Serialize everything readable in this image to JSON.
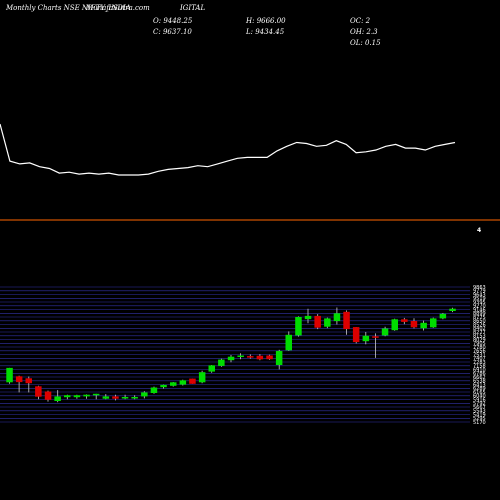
{
  "header": {
    "title": "Monthly Charts NSE NIFTY_INDIA",
    "title_suffix": "IGITAL",
    "watermark": "MunafaSutra.com",
    "open": "O: 9448.25",
    "high": "H: 9666.00",
    "close": "C: 9637.10",
    "low": "L: 9434.45",
    "oc": "OC: 2",
    "oh": "OH: 2.3",
    "ol": "OL: 0.15"
  },
  "colors": {
    "background": "#000000",
    "line": "#ffffff",
    "divider": "#ff6600",
    "up": "#00dd00",
    "down": "#dd0000",
    "gridline": "#3333aa"
  },
  "right_marker": "4",
  "chart_data": [
    {
      "type": "line",
      "panel": "top",
      "values": [
        100,
        60,
        57,
        58,
        54,
        52,
        47,
        48,
        46,
        47,
        46,
        47,
        45,
        45,
        45,
        46,
        49,
        51,
        52,
        53,
        55,
        54,
        57,
        60,
        63,
        64,
        64,
        64,
        71,
        76,
        80,
        79,
        76,
        77,
        82,
        78,
        69,
        70,
        72,
        76,
        78,
        74,
        74,
        72,
        76,
        78,
        80
      ]
    },
    {
      "type": "candlestick",
      "panel": "bottom",
      "y_ticks": [
        "9863",
        "9779",
        "9643",
        "9519",
        "9395",
        "9270",
        "9146",
        "8899",
        "8775",
        "8650",
        "8526",
        "8402",
        "8277",
        "8153",
        "8029",
        "7905",
        "7780",
        "7656",
        "7531",
        "7407",
        "7283",
        "7158",
        "6910",
        "6786",
        "6662",
        "6538",
        "6413",
        "6289",
        "6165",
        "6040",
        "5916",
        "5792",
        "5667",
        "5543",
        "5419",
        "5295",
        "5170"
      ],
      "candles": [
        {
          "o": 6550,
          "h": 7050,
          "l": 6500,
          "c": 7050
        },
        {
          "o": 6760,
          "h": 6780,
          "l": 6200,
          "c": 6560
        },
        {
          "o": 6690,
          "h": 6750,
          "l": 6200,
          "c": 6520
        },
        {
          "o": 6410,
          "h": 6430,
          "l": 5960,
          "c": 6050
        },
        {
          "o": 6230,
          "h": 6260,
          "l": 5880,
          "c": 5940
        },
        {
          "o": 5900,
          "h": 6280,
          "l": 5860,
          "c": 6060
        },
        {
          "o": 6030,
          "h": 6120,
          "l": 5960,
          "c": 6100
        },
        {
          "o": 6030,
          "h": 6120,
          "l": 5980,
          "c": 6100
        },
        {
          "o": 6060,
          "h": 6130,
          "l": 5980,
          "c": 6120
        },
        {
          "o": 6150,
          "h": 6150,
          "l": 5960,
          "c": 6150
        },
        {
          "o": 5980,
          "h": 6140,
          "l": 5960,
          "c": 6060
        },
        {
          "o": 6060,
          "h": 6120,
          "l": 5920,
          "c": 5980
        },
        {
          "o": 6000,
          "h": 6120,
          "l": 5960,
          "c": 6040
        },
        {
          "o": 5990,
          "h": 6100,
          "l": 5960,
          "c": 6040
        },
        {
          "o": 6060,
          "h": 6240,
          "l": 5990,
          "c": 6200
        },
        {
          "o": 6180,
          "h": 6400,
          "l": 6150,
          "c": 6370
        },
        {
          "o": 6380,
          "h": 6470,
          "l": 6330,
          "c": 6460
        },
        {
          "o": 6430,
          "h": 6560,
          "l": 6400,
          "c": 6550
        },
        {
          "o": 6470,
          "h": 6640,
          "l": 6440,
          "c": 6620
        },
        {
          "o": 6680,
          "h": 6680,
          "l": 6500,
          "c": 6500
        },
        {
          "o": 6550,
          "h": 6950,
          "l": 6520,
          "c": 6900
        },
        {
          "o": 6920,
          "h": 7150,
          "l": 6880,
          "c": 7140
        },
        {
          "o": 7120,
          "h": 7370,
          "l": 7090,
          "c": 7340
        },
        {
          "o": 7320,
          "h": 7500,
          "l": 7250,
          "c": 7440
        },
        {
          "o": 7430,
          "h": 7560,
          "l": 7350,
          "c": 7480
        },
        {
          "o": 7460,
          "h": 7520,
          "l": 7370,
          "c": 7430
        },
        {
          "o": 7470,
          "h": 7530,
          "l": 7320,
          "c": 7350
        },
        {
          "o": 7480,
          "h": 7510,
          "l": 7330,
          "c": 7350
        },
        {
          "o": 7150,
          "h": 7680,
          "l": 7000,
          "c": 7640
        },
        {
          "o": 7660,
          "h": 8320,
          "l": 7640,
          "c": 8200
        },
        {
          "o": 8180,
          "h": 8840,
          "l": 8140,
          "c": 8820
        },
        {
          "o": 8750,
          "h": 9110,
          "l": 8600,
          "c": 8860
        },
        {
          "o": 8860,
          "h": 8920,
          "l": 8400,
          "c": 8450
        },
        {
          "o": 8480,
          "h": 8800,
          "l": 8430,
          "c": 8770
        },
        {
          "o": 8680,
          "h": 9150,
          "l": 8560,
          "c": 8950
        },
        {
          "o": 9000,
          "h": 9050,
          "l": 8200,
          "c": 8400
        },
        {
          "o": 8470,
          "h": 8470,
          "l": 7900,
          "c": 7950
        },
        {
          "o": 7980,
          "h": 8300,
          "l": 7870,
          "c": 8170
        },
        {
          "o": 8150,
          "h": 8250,
          "l": 7400,
          "c": 8100
        },
        {
          "o": 8180,
          "h": 8480,
          "l": 8150,
          "c": 8420
        },
        {
          "o": 8360,
          "h": 8760,
          "l": 8340,
          "c": 8740
        },
        {
          "o": 8740,
          "h": 8790,
          "l": 8570,
          "c": 8650
        },
        {
          "o": 8680,
          "h": 8780,
          "l": 8420,
          "c": 8460
        },
        {
          "o": 8430,
          "h": 8700,
          "l": 8350,
          "c": 8620
        },
        {
          "o": 8460,
          "h": 8800,
          "l": 8440,
          "c": 8770
        },
        {
          "o": 8770,
          "h": 8960,
          "l": 8740,
          "c": 8930
        },
        {
          "o": 9030,
          "h": 9140,
          "l": 8990,
          "c": 9110
        }
      ]
    }
  ]
}
